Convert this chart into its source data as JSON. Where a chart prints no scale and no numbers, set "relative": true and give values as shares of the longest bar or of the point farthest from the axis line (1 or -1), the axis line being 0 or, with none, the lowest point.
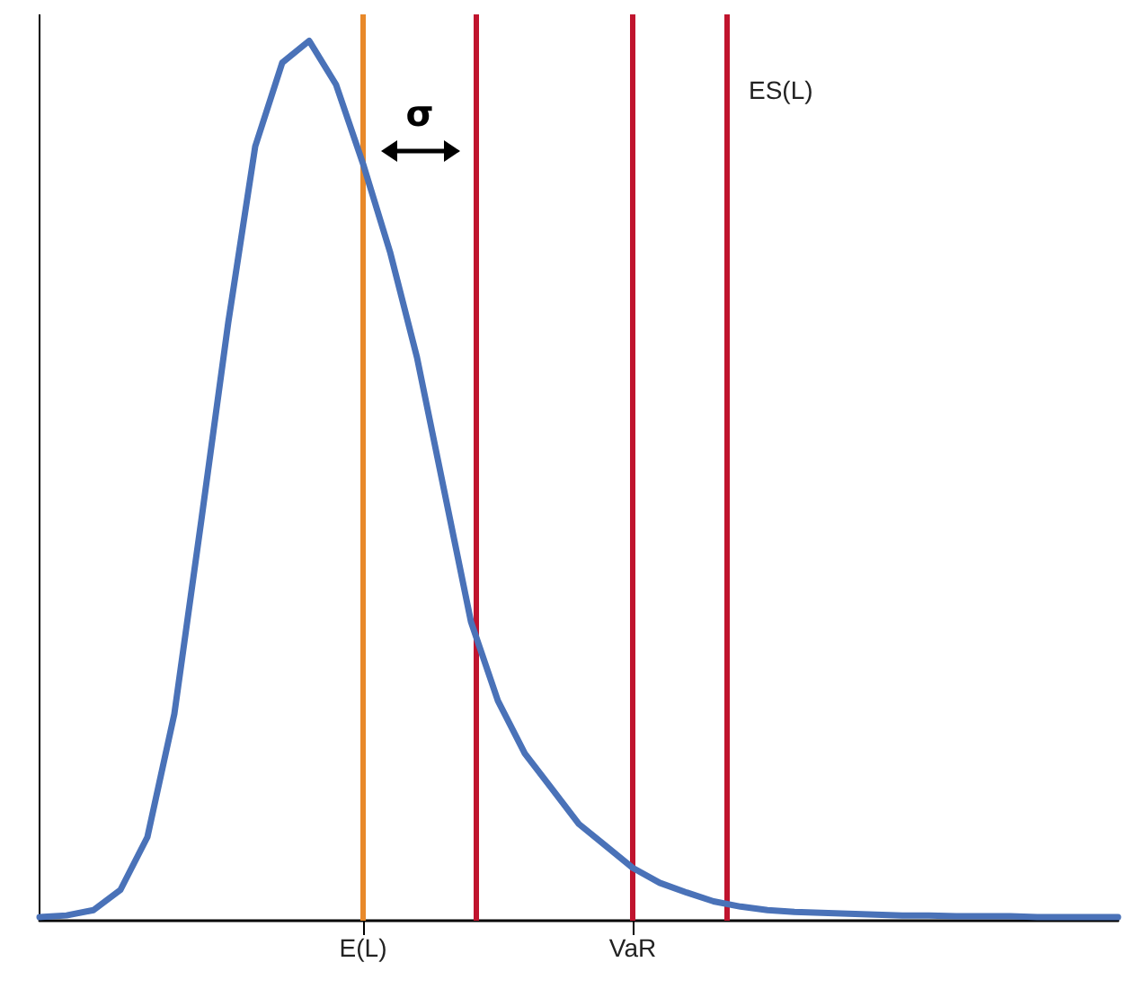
{
  "chart_data": {
    "type": "line",
    "relative": true,
    "marker": "none",
    "line_style": "solid",
    "categories": [
      null,
      null,
      null,
      null,
      null,
      null,
      null,
      null,
      null,
      null,
      null,
      null,
      "E(L)",
      null,
      null,
      null,
      null,
      null,
      null,
      null,
      null,
      null,
      "VaR",
      null,
      null,
      null,
      null,
      null,
      null,
      null,
      null,
      null,
      null,
      null,
      null,
      null,
      null,
      null,
      null,
      null,
      null
    ],
    "series": [
      {
        "color": "#4a72b8",
        "values": [
          0.004,
          0.006,
          0.012,
          0.035,
          0.095,
          0.235,
          0.455,
          0.68,
          0.88,
          0.975,
          1,
          0.95,
          0.86,
          0.76,
          0.64,
          0.49,
          0.34,
          0.25,
          0.19,
          0.15,
          0.11,
          0.085,
          0.06,
          0.043,
          0.032,
          0.022,
          0.016,
          0.012,
          0.01,
          0.009,
          0.008,
          0.007,
          0.006,
          0.006,
          0.005,
          0.005,
          0.005,
          0.004,
          0.004,
          0.004,
          0.004
        ]
      }
    ],
    "ref_lines": [
      {
        "axis": "x",
        "value": "E(L)",
        "color": "#e8892a"
      },
      {
        "axis": "x",
        "value": "VaR",
        "color": "#c0142e"
      }
    ],
    "annotations": [
      "σ",
      "ES(L)"
    ]
  }
}
